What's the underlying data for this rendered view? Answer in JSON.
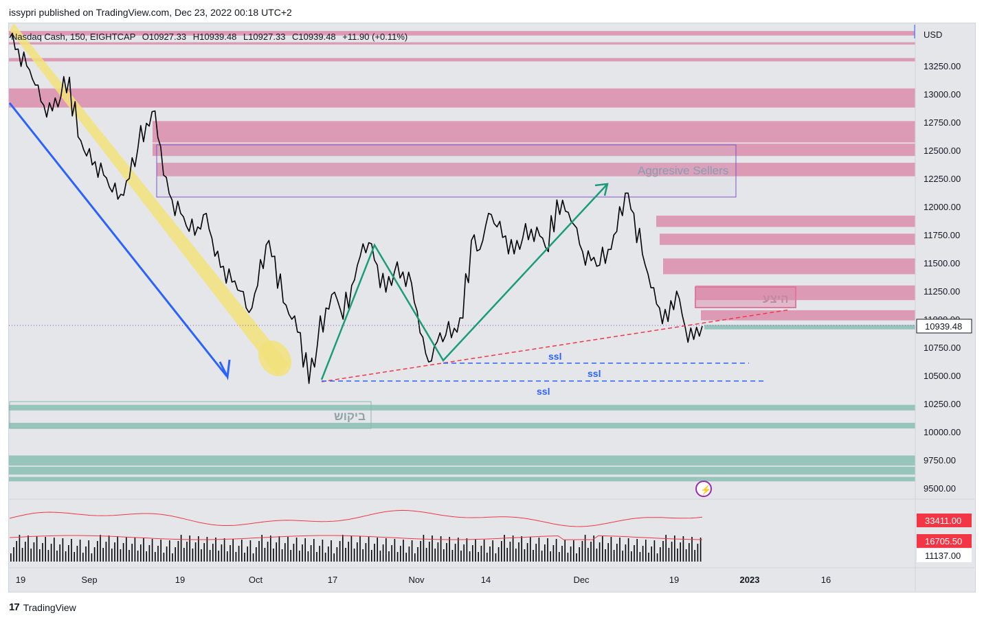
{
  "header": {
    "publisher": "issypri published on TradingView.com, Dec 23, 2022 00:18 UTC+2"
  },
  "legend": {
    "symbol": "Nasdaq Cash, 150, EIGHTCAP",
    "open": "O10927.33",
    "high": "H10939.48",
    "low": "L10927.33",
    "close": "C10939.48",
    "change": "+11.90 (+0.11%)"
  },
  "footer": {
    "brand": "TradingView",
    "logo_text": "17"
  },
  "colors": {
    "background": "#e5e6ea",
    "supply_zone": "#dc8cab",
    "demand_zone": "#92c3b9",
    "price_label_bg": "#ffffff",
    "volume_label_bg": "#f23645",
    "channel": "#f2e27a",
    "trend_arrow": "#2962ff",
    "swing_path": "#1a9c7a",
    "trendline": "#f23645",
    "ssl_line": "#2962ff",
    "box_outline": "#7e57c2"
  },
  "chart_data": {
    "type": "line",
    "title": "Nasdaq Cash, 150, EIGHTCAP",
    "ylabel": "USD",
    "ylim": [
      9350,
      13600
    ],
    "y_ticks": [
      "13250.00",
      "13000.00",
      "12750.00",
      "12500.00",
      "12250.00",
      "12000.00",
      "11750.00",
      "11500.00",
      "11250.00",
      "11000.00",
      "10750.00",
      "10500.00",
      "10250.00",
      "10000.00",
      "9750.00",
      "9500.00"
    ],
    "x_ticks": [
      "19",
      "Sep",
      "19",
      "Oct",
      "17",
      "Nov",
      "14",
      "Dec",
      "19",
      "2023",
      "16"
    ],
    "last_price": "10939.48",
    "series": [
      {
        "values": [
          13500,
          13400,
          13250,
          13080,
          12900,
          12850,
          12980,
          13150,
          12620,
          12450,
          12400,
          12280,
          12130,
          12110,
          12250,
          12520,
          12740,
          12850,
          12280,
          12060,
          11940,
          11780,
          11820,
          11940,
          11560,
          11470,
          11330,
          11250,
          11060,
          11300,
          11660,
          11560,
          11150,
          11000,
          10880,
          10430,
          10780,
          11100,
          11240,
          11000,
          11300,
          11560,
          11680,
          11480,
          11240,
          11420,
          11420,
          11320,
          10880,
          10620,
          10800,
          10860,
          10920,
          11010,
          11700,
          11620,
          11940,
          11820,
          11740,
          11580,
          11720,
          11800,
          11740,
          11600,
          12060,
          11960,
          11840,
          11600,
          11520,
          11480,
          11620,
          11780,
          12120,
          11940,
          11580,
          11280,
          11100,
          10980,
          11250,
          10930,
          10820,
          10939
        ]
      }
    ],
    "indicator": {
      "values": [
        "33411.00",
        "16705.50",
        "11137.00"
      ]
    },
    "annotations": {
      "box_label": "Aggresive Sellers",
      "supply_label": "היצע",
      "demand_label": "ביקוש",
      "ssl_labels": [
        "ssl",
        "ssl",
        "ssl"
      ]
    },
    "supply_zones": [
      [
        13520,
        13560
      ],
      [
        13440,
        13460
      ],
      [
        13290,
        13320
      ],
      [
        12880,
        13050
      ],
      [
        12570,
        12760
      ],
      [
        12450,
        12560
      ],
      [
        12270,
        12390
      ],
      [
        11820,
        11920
      ],
      [
        11660,
        11760
      ],
      [
        11400,
        11540
      ],
      [
        11170,
        11300
      ],
      [
        10990,
        11080
      ]
    ],
    "demand_zones": [
      [
        10910,
        10950
      ],
      [
        10190,
        10240
      ],
      [
        10030,
        10080
      ],
      [
        9700,
        9790
      ],
      [
        9620,
        9690
      ],
      [
        9560,
        9600
      ]
    ],
    "grid": false,
    "legend": "top-left"
  }
}
